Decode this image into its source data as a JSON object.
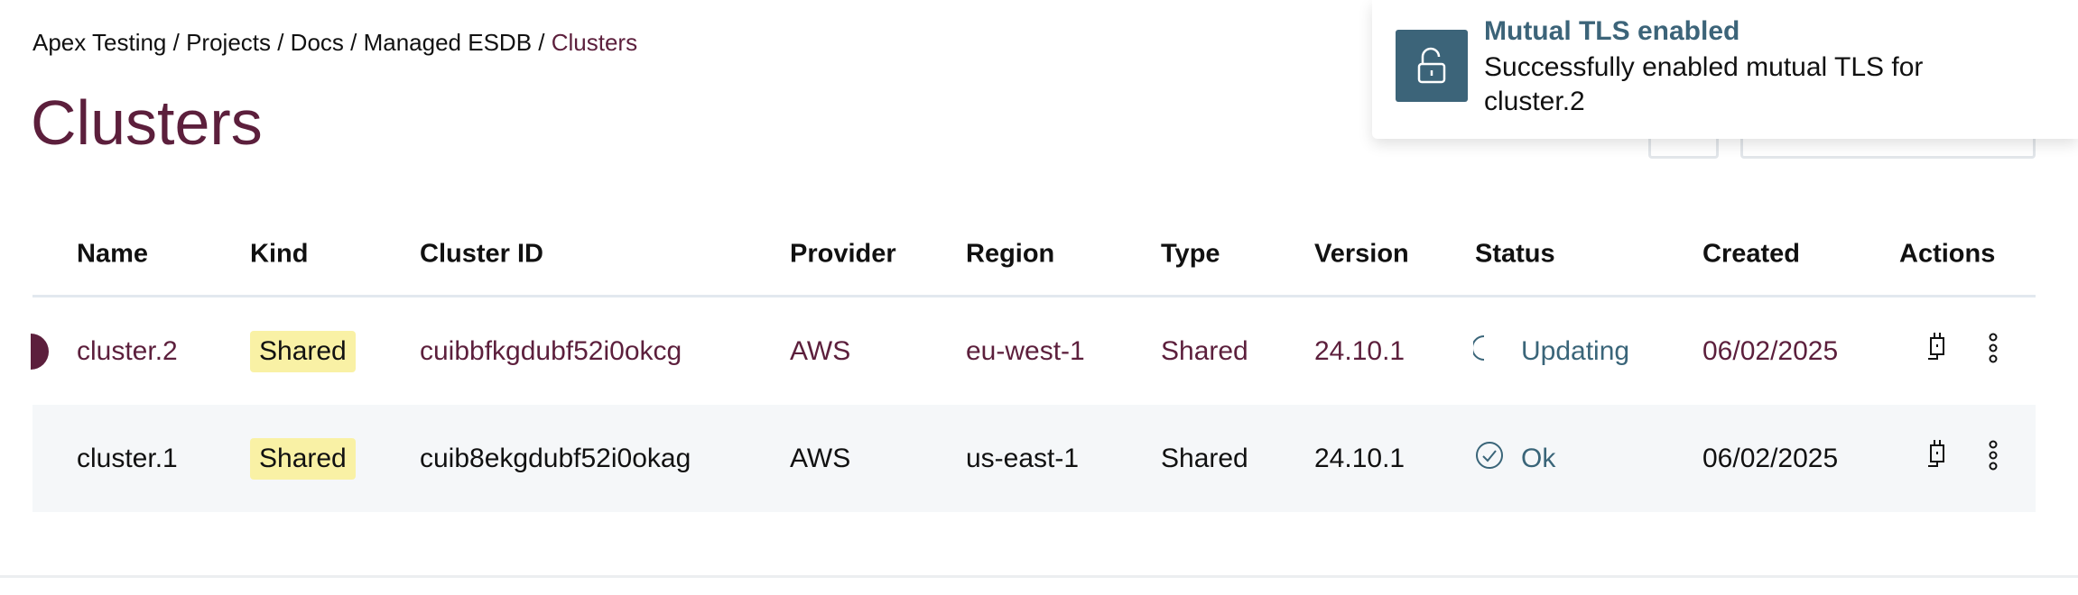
{
  "breadcrumb": {
    "items": [
      "Apex Testing",
      "Projects",
      "Docs",
      "Managed ESDB"
    ],
    "current": "Clusters",
    "separator": " / "
  },
  "page_title": "Clusters",
  "table": {
    "headers": [
      "Name",
      "Kind",
      "Cluster ID",
      "Provider",
      "Region",
      "Type",
      "Version",
      "Status",
      "Created",
      "Actions"
    ],
    "rows": [
      {
        "name": "cluster.2",
        "kind": "Shared",
        "cluster_id": "cuibbfkgdubf52i0okcg",
        "provider": "AWS",
        "region": "eu-west-1",
        "type": "Shared",
        "version": "24.10.1",
        "status": "Updating",
        "status_icon": "spinner-icon",
        "created": "06/02/2025"
      },
      {
        "name": "cluster.1",
        "kind": "Shared",
        "cluster_id": "cuib8ekgdubf52i0okag",
        "provider": "AWS",
        "region": "us-east-1",
        "type": "Shared",
        "version": "24.10.1",
        "status": "Ok",
        "status_icon": "check-circle-icon",
        "created": "06/02/2025"
      }
    ]
  },
  "toast": {
    "title": "Mutual TLS enabled",
    "message": "Successfully enabled mutual TLS for cluster.2",
    "icon": "unlock-icon"
  },
  "colors": {
    "brand": "#5c1f3c",
    "status": "#3a6579",
    "badge": "#f9f1a5",
    "toast_icon_bg": "#3c6479"
  }
}
